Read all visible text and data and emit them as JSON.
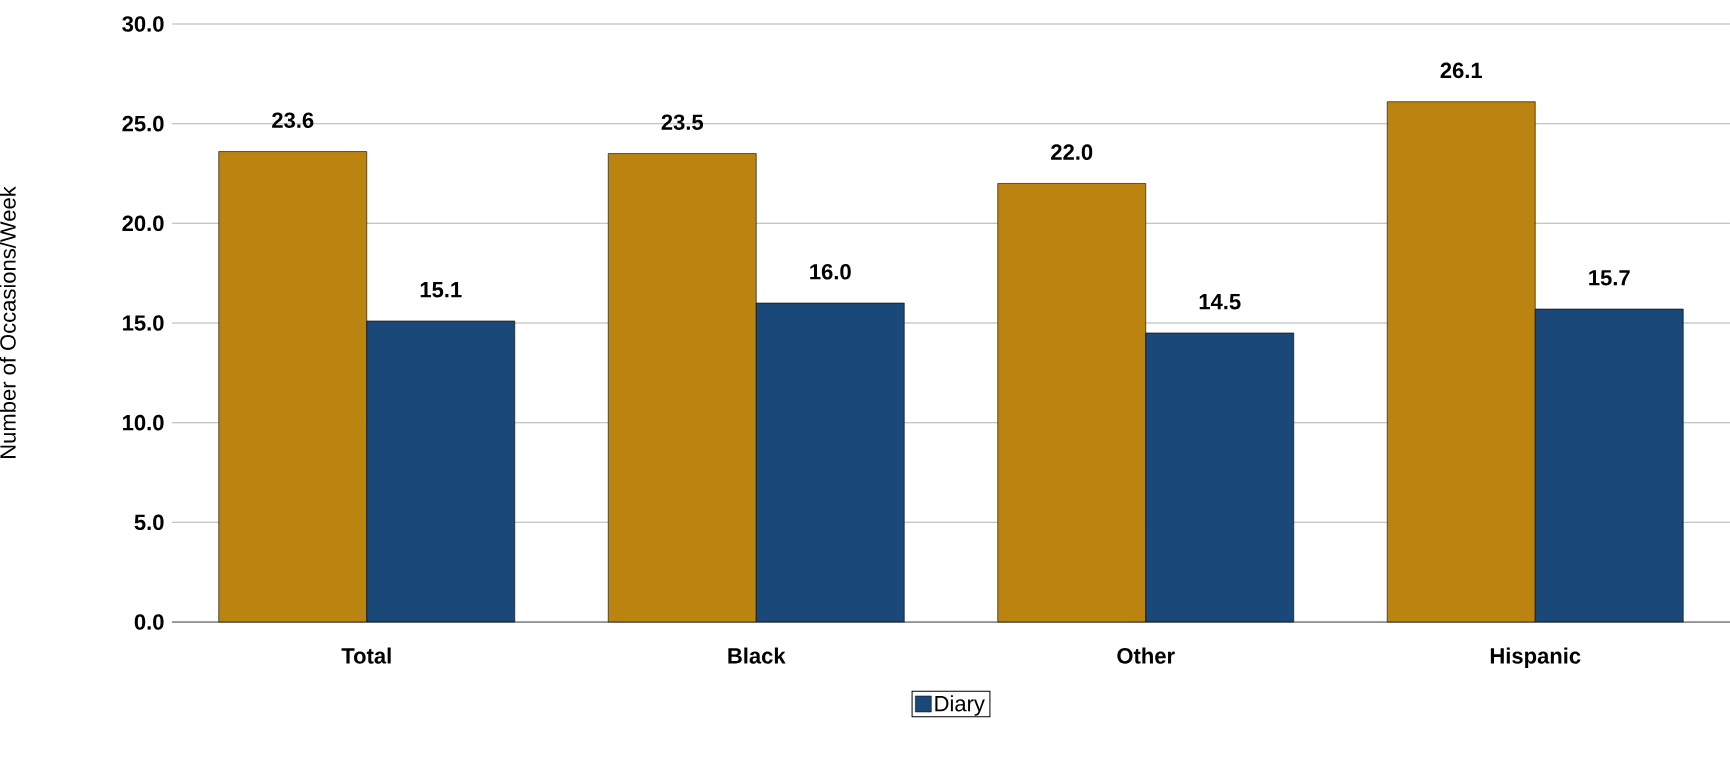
{
  "chart_data": {
    "type": "bar",
    "ylabel": "Number of Occasions/Week",
    "categories": [
      "Total",
      "Black",
      "Other",
      "Hispanic"
    ],
    "series": [
      {
        "color": "#bb8410",
        "values": [
          23.6,
          23.5,
          22.0,
          26.1
        ],
        "value_labels": [
          "23.6",
          "23.5",
          "22.0",
          "26.1"
        ]
      },
      {
        "name": "Diary",
        "color": "#1a4878",
        "values": [
          15.1,
          16.0,
          14.5,
          15.7
        ],
        "value_labels": [
          "15.1",
          "16.0",
          "14.5",
          "15.7"
        ]
      }
    ],
    "ylim": [
      0,
      30
    ],
    "yticks": [
      {
        "value": 0,
        "label": "0.0"
      },
      {
        "value": 5,
        "label": "5.0"
      },
      {
        "value": 10,
        "label": "10.0"
      },
      {
        "value": 15,
        "label": "15.0"
      },
      {
        "value": 20,
        "label": "20.0"
      },
      {
        "value": 25,
        "label": "25.0"
      },
      {
        "value": 30,
        "label": "30.0"
      }
    ],
    "grid": "y",
    "legend": "bottom"
  }
}
